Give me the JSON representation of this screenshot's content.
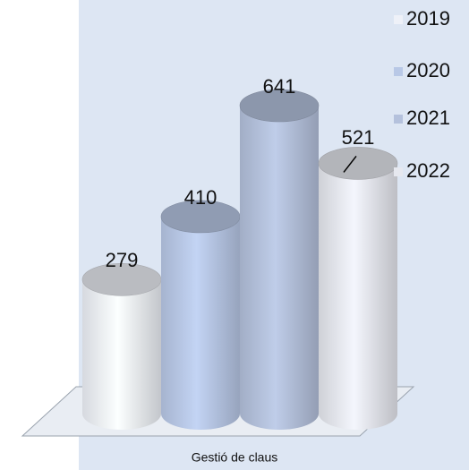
{
  "chart_data": {
    "type": "cylinder",
    "categories": [
      "Gestió de claus"
    ],
    "series": [
      {
        "name": "2019",
        "color": "#eef1f8",
        "values": [
          279
        ]
      },
      {
        "name": "2020",
        "color": "#b8c8e6",
        "values": [
          410
        ]
      },
      {
        "name": "2021",
        "color": "#b4c1dc",
        "values": [
          641
        ]
      },
      {
        "name": "2022",
        "color": "#e6e8ef",
        "values": [
          521
        ]
      }
    ]
  }
}
